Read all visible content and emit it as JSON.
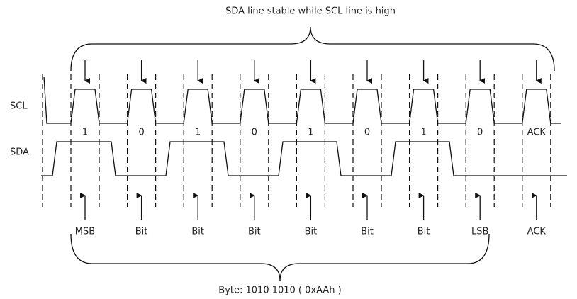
{
  "title": "SDA line stable while SCL line is high",
  "signals": [
    "SCL",
    "SDA"
  ],
  "bits": [
    "1",
    "0",
    "1",
    "0",
    "1",
    "0",
    "1",
    "0",
    "ACK"
  ],
  "bit_labels": [
    "MSB",
    "Bit",
    "Bit",
    "Bit",
    "Bit",
    "Bit",
    "Bit",
    "LSB",
    "ACK"
  ],
  "caption": "Byte: 1010 1010 ( 0xAAh )"
}
